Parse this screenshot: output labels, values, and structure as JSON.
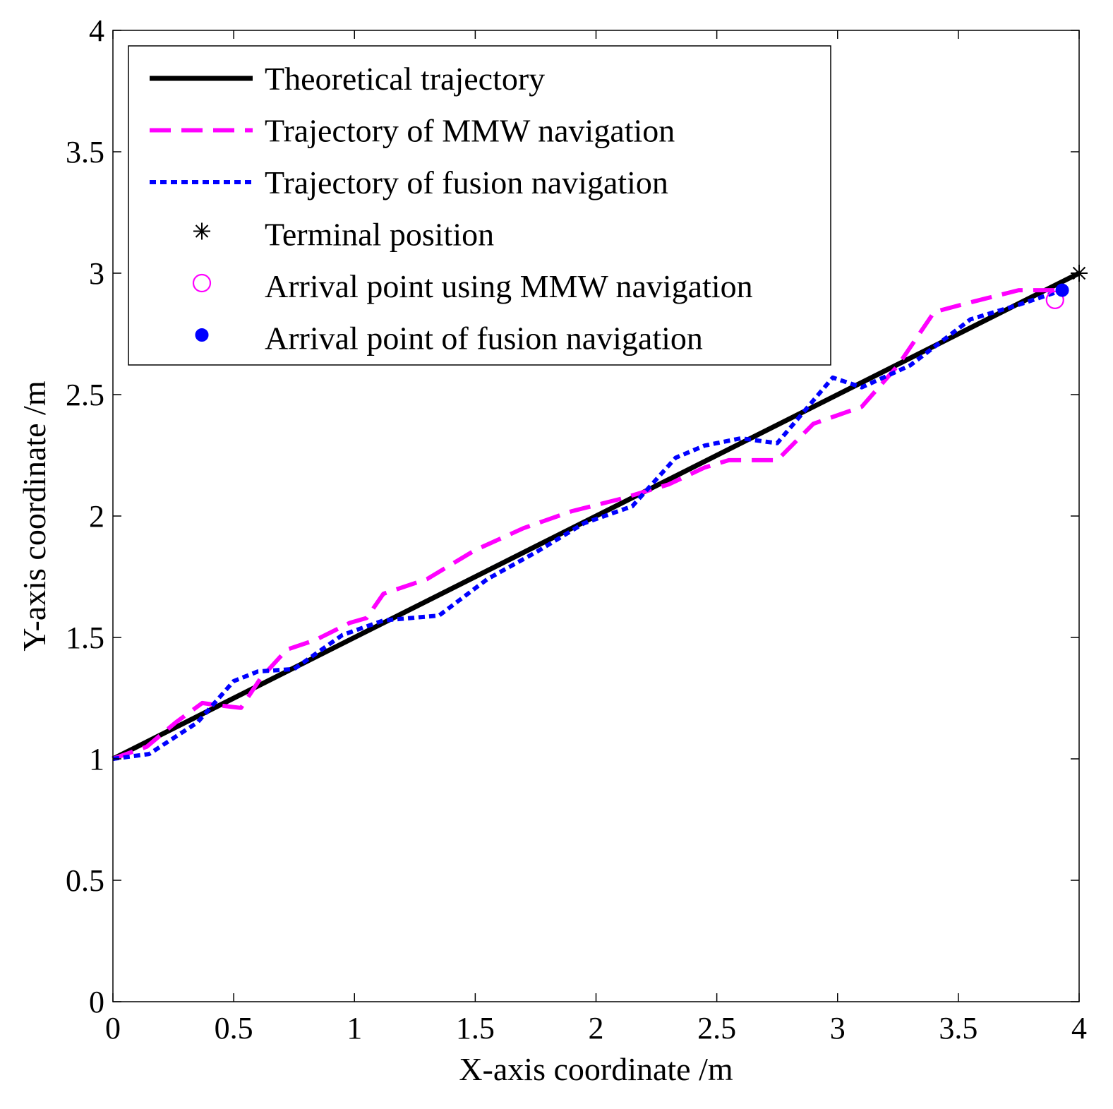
{
  "chart_data": {
    "type": "line",
    "xlabel": "X-axis coordinate /m",
    "ylabel": "Y-axis coordinate /m",
    "xlim": [
      0,
      4
    ],
    "ylim": [
      0,
      4
    ],
    "xticks": [
      "0",
      "0.5",
      "1",
      "1.5",
      "2",
      "2.5",
      "3",
      "3.5",
      "4"
    ],
    "yticks": [
      "0",
      "0.5",
      "1",
      "1.5",
      "2",
      "2.5",
      "3",
      "3.5",
      "4"
    ],
    "grid": false,
    "legend_position": "top-left",
    "series": [
      {
        "name": "Theoretical trajectory",
        "style": "solid",
        "color": "#000000",
        "x": [
          0,
          4
        ],
        "y": [
          1,
          3
        ]
      },
      {
        "name": "Trajectory of MMW navigation",
        "style": "dashed",
        "color": "#ff00ff",
        "x": [
          0,
          0.14,
          0.26,
          0.37,
          0.44,
          0.53,
          0.61,
          0.72,
          0.84,
          0.98,
          1.05,
          1.12,
          1.3,
          1.5,
          1.7,
          1.9,
          2.1,
          2.3,
          2.45,
          2.55,
          2.75,
          2.9,
          3.1,
          3.25,
          3.4,
          3.55,
          3.75,
          3.92
        ],
        "y": [
          1,
          1.05,
          1.15,
          1.23,
          1.22,
          1.21,
          1.33,
          1.45,
          1.49,
          1.56,
          1.58,
          1.68,
          1.74,
          1.86,
          1.95,
          2.02,
          2.07,
          2.13,
          2.2,
          2.23,
          2.23,
          2.38,
          2.45,
          2.62,
          2.84,
          2.88,
          2.93,
          2.93
        ]
      },
      {
        "name": "Trajectory of fusion navigation",
        "style": "dotted",
        "color": "#0000ff",
        "x": [
          0,
          0.15,
          0.35,
          0.5,
          0.6,
          0.75,
          0.95,
          1.12,
          1.35,
          1.55,
          1.75,
          1.95,
          2.15,
          2.33,
          2.45,
          2.6,
          2.75,
          2.98,
          3.1,
          3.3,
          3.55,
          3.75,
          3.93
        ],
        "y": [
          1,
          1.02,
          1.15,
          1.32,
          1.36,
          1.37,
          1.51,
          1.57,
          1.59,
          1.74,
          1.85,
          1.97,
          2.04,
          2.24,
          2.29,
          2.32,
          2.3,
          2.57,
          2.53,
          2.62,
          2.81,
          2.87,
          2.93
        ]
      },
      {
        "name": "Terminal position",
        "marker": "asterisk",
        "color": "#000000",
        "x": [
          4
        ],
        "y": [
          3
        ]
      },
      {
        "name": "Arrival point using MMW navigation",
        "marker": "open-circle",
        "color": "#ff00ff",
        "x": [
          3.9
        ],
        "y": [
          2.89
        ]
      },
      {
        "name": "Arrival point of fusion navigation",
        "marker": "filled-circle",
        "color": "#0000ff",
        "x": [
          3.93
        ],
        "y": [
          2.93
        ]
      }
    ]
  }
}
